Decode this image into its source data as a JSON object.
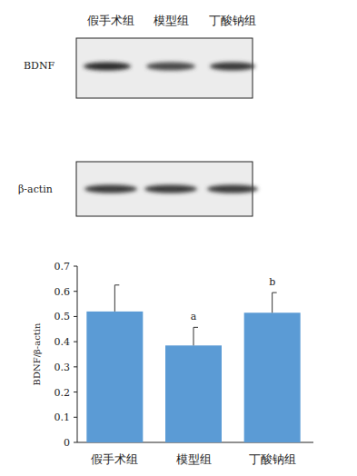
{
  "blot": {
    "lanes": [
      "假手术组",
      "模型组",
      "丁酸钠组"
    ],
    "bands": [
      "BDNF",
      "β-actin"
    ]
  },
  "chart_data": {
    "type": "bar",
    "categories": [
      "假手术组",
      "模型组",
      "丁酸钠组"
    ],
    "values": [
      0.52,
      0.385,
      0.515
    ],
    "errors": [
      0.105,
      0.072,
      0.08
    ],
    "annotations": [
      null,
      "a",
      "b"
    ],
    "ylabel": "BDNF/β-actin",
    "color": "#5b9bd5",
    "ylim": [
      0,
      0.7
    ],
    "yticks": [
      0,
      0.1,
      0.2,
      0.3,
      0.4,
      0.5,
      0.6,
      0.7
    ],
    "grid": false
  }
}
